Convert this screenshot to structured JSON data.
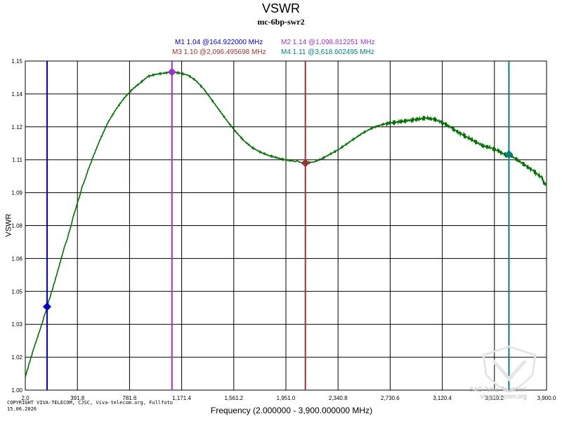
{
  "chart_data": {
    "type": "line",
    "title": "VSWR",
    "subtitle": "mc-6bp-swr2",
    "xlabel": "Frequency (2.000000 - 3,900.000000 MHz)",
    "ylabel": "VSWR",
    "xlim": [
      2.0,
      3900.0
    ],
    "ylim": [
      1.0,
      1.15
    ],
    "x_tick_labels": [
      "2.0",
      "391.8",
      "781.6",
      "1,171.4",
      "1,561.2",
      "1,951.0",
      "2,340.8",
      "2,730.6",
      "3,120.4",
      "3,510.2",
      "3,900.0"
    ],
    "y_tick_labels": [
      "1.15",
      "1.14",
      "1.12",
      "1.11",
      "1.09",
      "1.08",
      "1.06",
      "1.05",
      "1.03",
      "1.02",
      "1.00"
    ],
    "grid": true,
    "series": [
      {
        "color": "#007000",
        "x": [
          2,
          60,
          120,
          165,
          220,
          280,
          330,
          380,
          430,
          500,
          560,
          620,
          680,
          740,
          800,
          860,
          920,
          980,
          1040,
          1099,
          1160,
          1220,
          1280,
          1340,
          1400,
          1460,
          1520,
          1580,
          1640,
          1700,
          1760,
          1820,
          1880,
          1940,
          2000,
          2050,
          2096,
          2160,
          2220,
          2280,
          2340,
          2400,
          2460,
          2520,
          2580,
          2640,
          2700,
          2760,
          2820,
          2880,
          2940,
          3000,
          3060,
          3120,
          3180,
          3240,
          3300,
          3360,
          3420,
          3480,
          3540,
          3600,
          3619,
          3680,
          3740,
          3800,
          3860,
          3900
        ],
        "y": [
          1.006,
          1.018,
          1.029,
          1.038,
          1.049,
          1.062,
          1.072,
          1.083,
          1.093,
          1.105,
          1.114,
          1.122,
          1.128,
          1.133,
          1.137,
          1.14,
          1.143,
          1.144,
          1.1445,
          1.145,
          1.1445,
          1.1435,
          1.141,
          1.137,
          1.132,
          1.127,
          1.122,
          1.1175,
          1.1135,
          1.1105,
          1.1085,
          1.107,
          1.106,
          1.105,
          1.1045,
          1.104,
          1.1035,
          1.104,
          1.1055,
          1.1075,
          1.1095,
          1.112,
          1.1145,
          1.117,
          1.119,
          1.1205,
          1.1215,
          1.122,
          1.1225,
          1.123,
          1.1235,
          1.124,
          1.1235,
          1.122,
          1.12,
          1.1175,
          1.1155,
          1.1135,
          1.1115,
          1.1105,
          1.109,
          1.107,
          1.1075,
          1.105,
          1.1025,
          1.1,
          1.097,
          1.093
        ]
      }
    ],
    "markers": [
      {
        "label": "M1",
        "value": "1.04",
        "freq": "164.922000 MHz",
        "x": 164.922,
        "y": 1.038,
        "color": "#0000cc"
      },
      {
        "label": "M2",
        "value": "1.14",
        "freq": "1,098.812251 MHz",
        "x": 1098.812251,
        "y": 1.145,
        "color": "#9933cc"
      },
      {
        "label": "M3",
        "value": "1.10",
        "freq": "2,096.495698 MHz",
        "x": 2096.495698,
        "y": 1.1035,
        "color": "#993333"
      },
      {
        "label": "M4",
        "value": "1.11",
        "freq": "3,618.602495 MHz",
        "x": 3618.602495,
        "y": 1.1075,
        "color": "#008080"
      }
    ],
    "copyright": [
      "COPYRIGHT VIVA-TELECOM, CJSC, Viva-telecom.org, Fullfoto",
      "15.06.2026"
    ],
    "watermark": [
      "SAO \"Viva-Telekom\"",
      "viva-telecom.org"
    ]
  }
}
